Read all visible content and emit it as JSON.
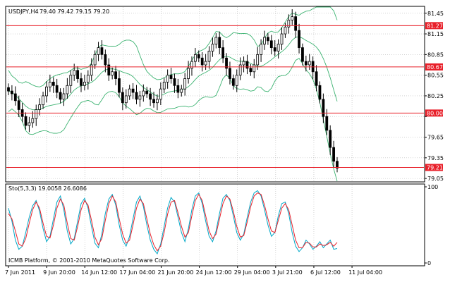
{
  "price_chart": {
    "symbol_header": "USDJPY,H4",
    "ohlc_header": "79.40 79.42 79.15 79.20",
    "price_ticks": [
      "81.45",
      "81.15",
      "80.85",
      "80.55",
      "80.25",
      "79.95",
      "79.65",
      "79.35",
      "79.05"
    ],
    "levels": [
      {
        "label": "81.27",
        "value": 81.27
      },
      {
        "label": "80.67",
        "value": 80.67
      },
      {
        "label": "80.00",
        "value": 80.0
      },
      {
        "label": "79.21",
        "value": 79.21
      }
    ],
    "colors": {
      "candle": "#000000",
      "bands": "#3cb371",
      "level_line": "#e8202a",
      "level_label_bg": "#e8202a",
      "grid": "#b8b8b8"
    }
  },
  "stochastic": {
    "header": "Sto(5,3,3) 19.0058 26.6086",
    "ticks": [
      "100",
      "0"
    ],
    "colors": {
      "main": "#00a8c8",
      "signal": "#e8202a"
    }
  },
  "copyright": "ICMB Platform, © 2001-2010 MetaQuotes Software Corp.",
  "time_axis": [
    "7 Jun 2011",
    "9 Jun 20:00",
    "14 Jun 12:00",
    "17 Jun 04:00",
    "21 Jun 20:00",
    "24 Jun 12:00",
    "29 Jun 04:00",
    "3 Jul 21:00",
    "6 Jul 12:00",
    "11 Jul 04:00"
  ],
  "chart_data": {
    "type": "candlestick",
    "symbol": "USDJPY",
    "timeframe": "H4",
    "ylim": [
      79.0,
      81.55
    ],
    "closes": [
      80.32,
      80.28,
      80.18,
      80.05,
      79.95,
      79.82,
      79.86,
      79.92,
      80.05,
      80.12,
      80.25,
      80.38,
      80.45,
      80.4,
      80.3,
      80.2,
      80.28,
      80.4,
      80.55,
      80.62,
      80.5,
      80.4,
      80.45,
      80.55,
      80.7,
      80.85,
      80.95,
      80.85,
      80.7,
      80.55,
      80.6,
      80.5,
      80.3,
      80.15,
      80.25,
      80.35,
      80.3,
      80.2,
      80.25,
      80.32,
      80.28,
      80.2,
      80.15,
      80.2,
      80.35,
      80.45,
      80.55,
      80.5,
      80.4,
      80.3,
      80.35,
      80.5,
      80.65,
      80.75,
      80.85,
      80.8,
      80.7,
      80.75,
      80.9,
      81.0,
      81.1,
      80.95,
      80.8,
      80.65,
      80.5,
      80.4,
      80.55,
      80.7,
      80.75,
      80.65,
      80.6,
      80.7,
      80.85,
      81.0,
      81.1,
      81.05,
      80.95,
      80.9,
      81.0,
      81.15,
      81.25,
      81.35,
      81.4,
      81.2,
      80.95,
      80.75,
      80.7,
      80.75,
      80.6,
      80.4,
      80.2,
      79.95,
      79.75,
      79.5,
      79.3,
      79.2
    ],
    "stochastic_main": [
      72,
      55,
      30,
      18,
      22,
      40,
      60,
      75,
      82,
      68,
      45,
      28,
      35,
      58,
      80,
      88,
      70,
      42,
      25,
      32,
      55,
      78,
      85,
      72,
      48,
      26,
      20,
      38,
      65,
      84,
      90,
      76,
      50,
      30,
      22,
      35,
      58,
      80,
      88,
      74,
      50,
      30,
      18,
      12,
      25,
      48,
      72,
      86,
      80,
      60,
      40,
      28,
      45,
      70,
      88,
      92,
      78,
      55,
      35,
      28,
      42,
      65,
      85,
      90,
      82,
      62,
      40,
      30,
      38,
      60,
      80,
      92,
      95,
      88,
      70,
      50,
      35,
      40,
      62,
      78,
      80,
      65,
      40,
      22,
      15,
      20,
      30,
      25,
      18,
      22,
      28,
      20,
      25,
      30,
      18,
      19
    ],
    "stochastic_signal": [
      65,
      58,
      42,
      25,
      22,
      32,
      52,
      70,
      80,
      72,
      52,
      35,
      33,
      50,
      72,
      84,
      76,
      52,
      32,
      30,
      48,
      70,
      82,
      76,
      56,
      34,
      24,
      32,
      56,
      78,
      88,
      80,
      58,
      38,
      26,
      30,
      50,
      72,
      84,
      78,
      58,
      38,
      24,
      16,
      22,
      40,
      64,
      80,
      82,
      66,
      48,
      34,
      40,
      62,
      82,
      90,
      82,
      62,
      42,
      32,
      38,
      58,
      78,
      88,
      84,
      68,
      48,
      34,
      36,
      54,
      74,
      88,
      92,
      90,
      76,
      58,
      42,
      40,
      56,
      72,
      78,
      70,
      50,
      30,
      20,
      20,
      27,
      26,
      21,
      21,
      25,
      23,
      24,
      27,
      22,
      27
    ],
    "stochastic_ylim": [
      0,
      100
    ]
  }
}
